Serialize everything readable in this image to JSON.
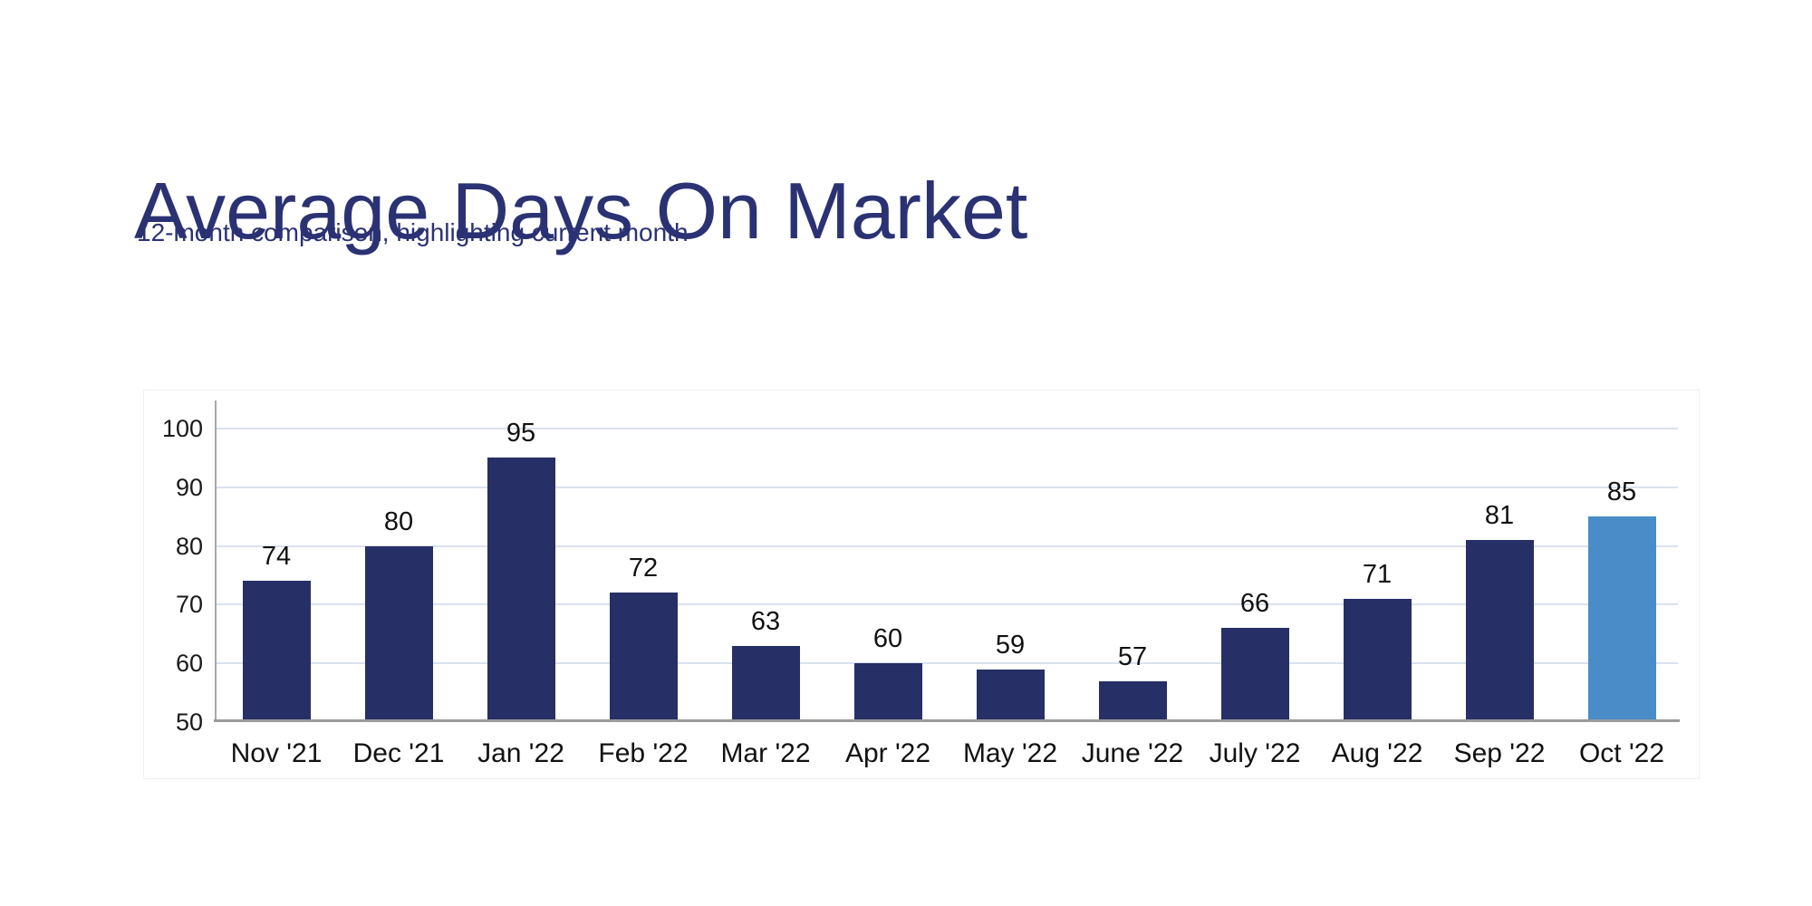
{
  "header": {
    "title": "Average Days On Market",
    "subtitle": "12-month comparison, highlighting current month"
  },
  "chart_data": {
    "type": "bar",
    "title": "Average Days On Market",
    "subtitle": "12-month comparison, highlighting current month",
    "categories": [
      "Nov '21",
      "Dec '21",
      "Jan '22",
      "Feb '22",
      "Mar '22",
      "Apr '22",
      "May '22",
      "June '22",
      "July '22",
      "Aug '22",
      "Sep '22",
      "Oct '22"
    ],
    "values": [
      74,
      80,
      95,
      72,
      63,
      60,
      59,
      57,
      66,
      71,
      81,
      85
    ],
    "highlight_index": 11,
    "highlight_category": "Oct '22",
    "data_labels": true,
    "legend": false,
    "grid": true,
    "yticks": [
      50,
      60,
      70,
      80,
      90,
      100
    ],
    "ylim": [
      50,
      105
    ],
    "xlabel": "",
    "ylabel": "",
    "colors": {
      "bar": "#262f66",
      "highlight": "#4a8cc7",
      "gridline": "#d9e2ef",
      "axis": "#9b9b9b",
      "tick_text": "#1a1a1a",
      "value_text": "#111111",
      "title_text": "#2b3273"
    }
  }
}
